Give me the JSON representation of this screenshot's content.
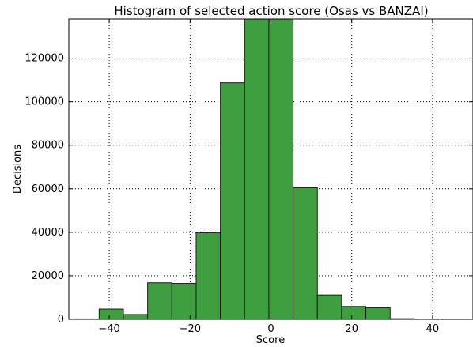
{
  "chart_data": {
    "type": "bar",
    "title": "Histogram of selected action score (Osas vs BANZAI)",
    "xlabel": "Score",
    "ylabel": "Decisions",
    "xlim": [
      -50,
      50
    ],
    "ylim": [
      0,
      138000
    ],
    "x_ticks": [
      -40,
      -20,
      0,
      20,
      40
    ],
    "x_tick_labels": [
      "−40",
      "−20",
      "0",
      "20",
      "40"
    ],
    "y_ticks": [
      0,
      20000,
      40000,
      60000,
      80000,
      100000,
      120000
    ],
    "y_tick_labels": [
      "0",
      "20000",
      "40000",
      "60000",
      "80000",
      "100000",
      "120000"
    ],
    "grid": true,
    "bar_color": "#3f9f3f",
    "edge_color": "#1a1a1a",
    "bins": [
      {
        "x0": -48.5,
        "x1": -42.5,
        "value": 200
      },
      {
        "x0": -42.5,
        "x1": -36.5,
        "value": 4700
      },
      {
        "x0": -36.5,
        "x1": -30.5,
        "value": 2200
      },
      {
        "x0": -30.5,
        "x1": -24.5,
        "value": 16800
      },
      {
        "x0": -24.5,
        "x1": -18.5,
        "value": 16500
      },
      {
        "x0": -18.5,
        "x1": -12.5,
        "value": 39800
      },
      {
        "x0": -12.5,
        "x1": -6.5,
        "value": 108700
      },
      {
        "x0": -6.5,
        "x1": -0.5,
        "value": 138000
      },
      {
        "x0": -0.5,
        "x1": 5.5,
        "value": 138000
      },
      {
        "x0": 5.5,
        "x1": 11.5,
        "value": 60500
      },
      {
        "x0": 11.5,
        "x1": 17.5,
        "value": 11200
      },
      {
        "x0": 17.5,
        "x1": 23.5,
        "value": 5900
      },
      {
        "x0": 23.5,
        "x1": 29.5,
        "value": 5300
      },
      {
        "x0": 29.5,
        "x1": 35.5,
        "value": 300
      },
      {
        "x0": 35.5,
        "x1": 41.5,
        "value": 150
      }
    ]
  }
}
